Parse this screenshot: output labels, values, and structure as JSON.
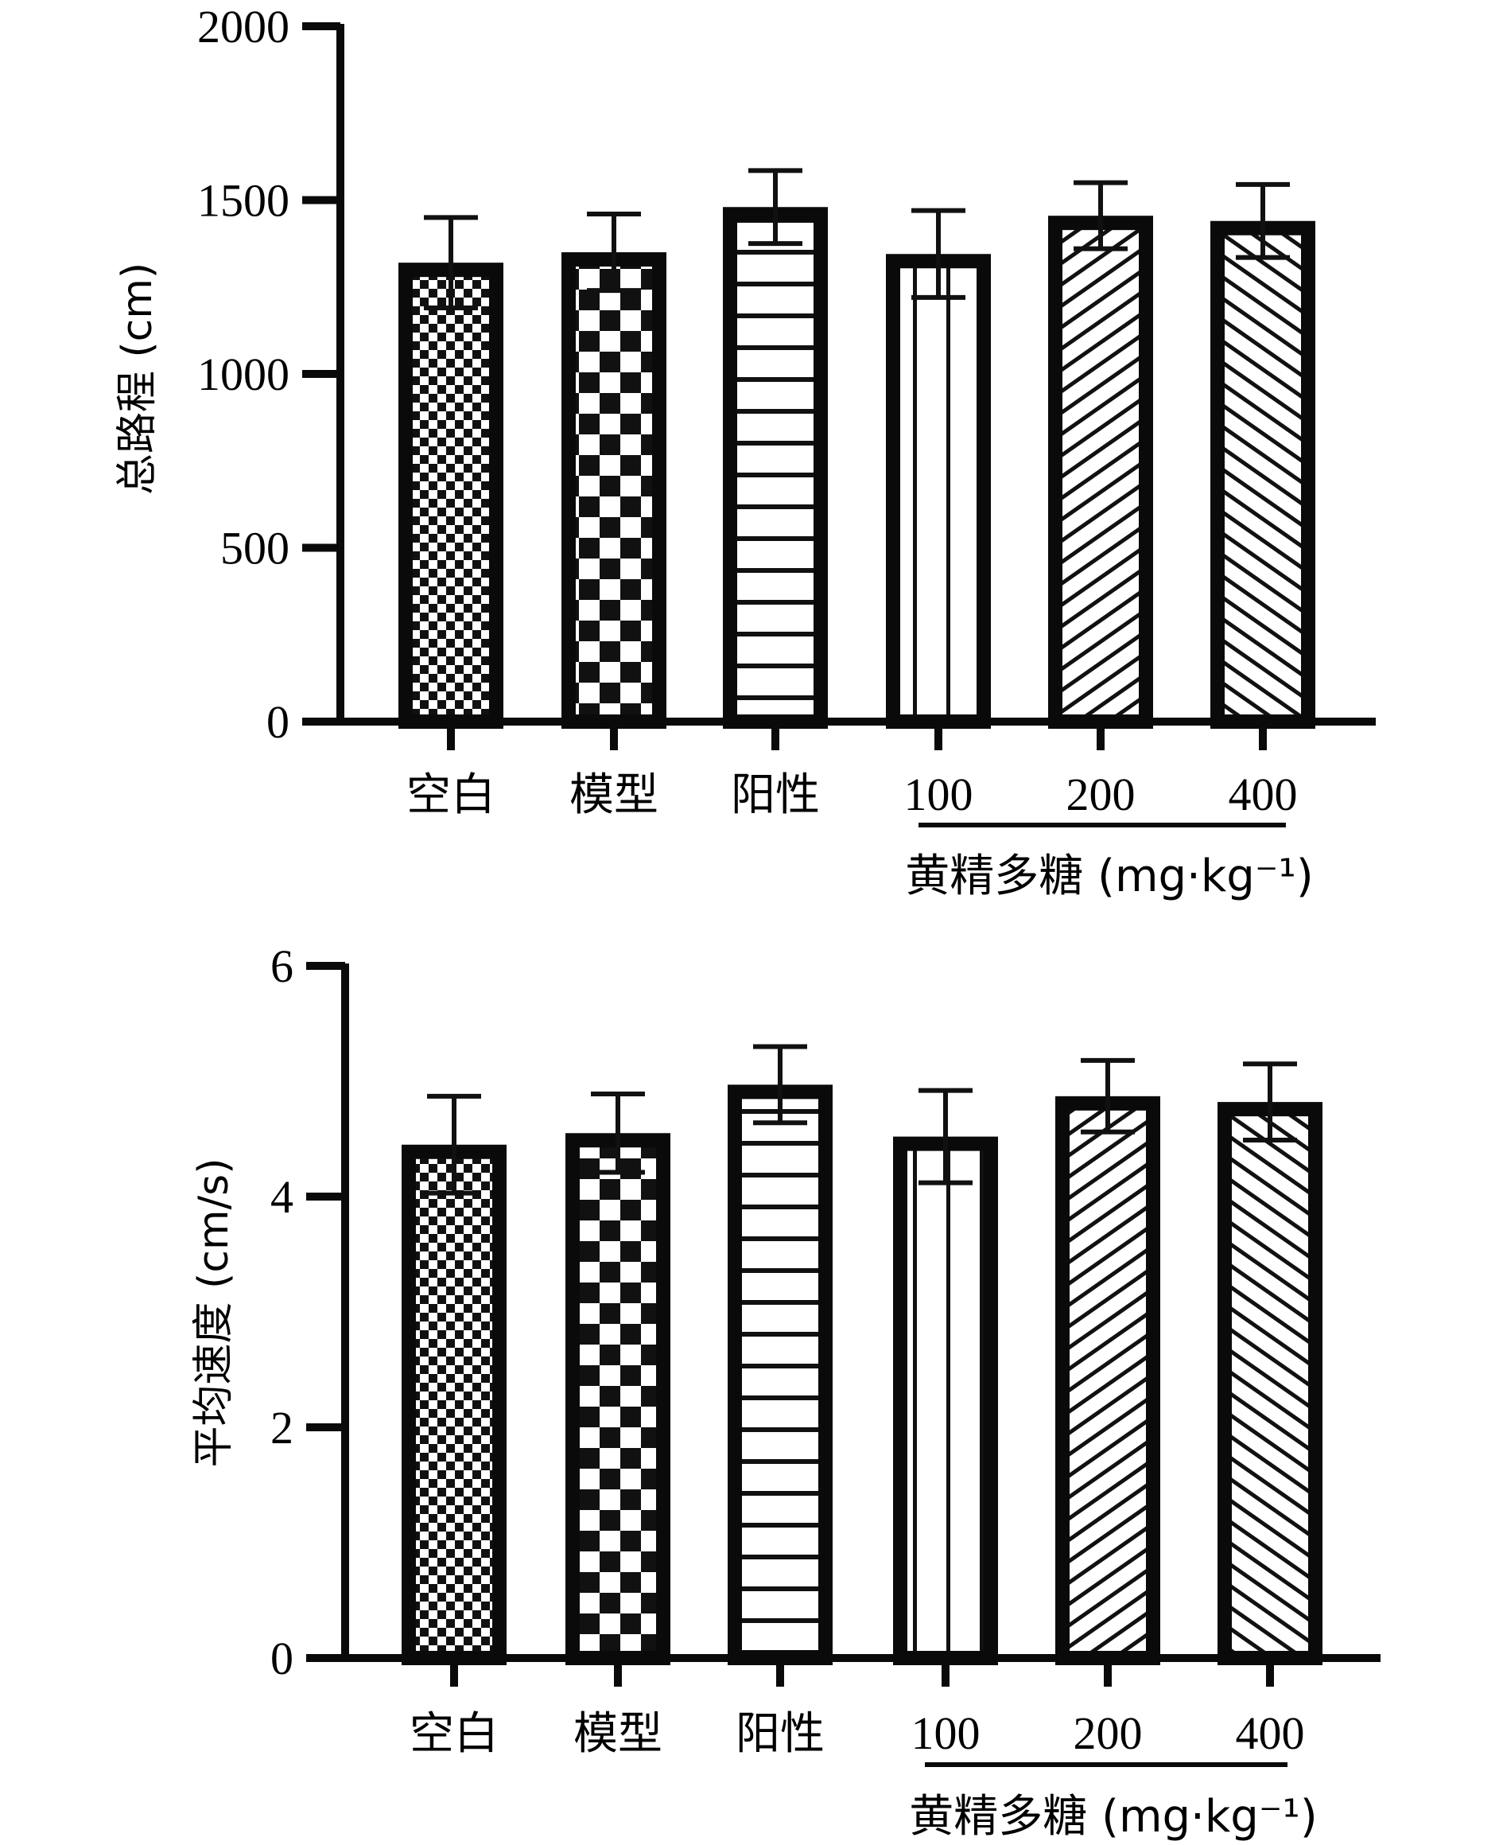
{
  "chart_data": [
    {
      "type": "bar",
      "title": "",
      "xlabel": "黄精多糖 (mg·kg⁻¹)",
      "ylabel": "总路程 (cm)",
      "categories": [
        "空白",
        "模型",
        "阳性",
        "100",
        "200",
        "400"
      ],
      "group_bracket": {
        "label": "黄精多糖 (mg·kg⁻¹)",
        "spans": [
          "100",
          "200",
          "400"
        ]
      },
      "values": [
        1320,
        1350,
        1480,
        1345,
        1455,
        1440
      ],
      "errors": [
        130,
        110,
        105,
        125,
        95,
        105
      ],
      "patterns": [
        "fine-checker",
        "coarse-checker",
        "horizontal-lines",
        "vertical-lines",
        "diagonal-up",
        "diagonal-down"
      ],
      "ylim": [
        0,
        2000
      ],
      "yticks": [
        0,
        500,
        1000,
        1500,
        2000
      ],
      "ytick_labels": [
        "0",
        "500",
        "1000",
        "1500",
        "2000"
      ],
      "grid": false,
      "colors": {
        "stroke": "#0a0a0a",
        "fill": "#ffffff"
      }
    },
    {
      "type": "bar",
      "title": "",
      "xlabel": "黄精多糖 (mg·kg⁻¹)",
      "ylabel": "平均速度 (cm/s)",
      "categories": [
        "空白",
        "模型",
        "阳性",
        "100",
        "200",
        "400"
      ],
      "group_bracket": {
        "label": "黄精多糖 (mg·kg⁻¹)",
        "spans": [
          "100",
          "200",
          "400"
        ]
      },
      "values": [
        4.45,
        4.55,
        4.97,
        4.52,
        4.87,
        4.82
      ],
      "errors": [
        0.42,
        0.34,
        0.33,
        0.4,
        0.31,
        0.33
      ],
      "patterns": [
        "fine-checker",
        "coarse-checker",
        "horizontal-lines",
        "vertical-lines",
        "diagonal-up",
        "diagonal-down"
      ],
      "ylim": [
        0,
        6
      ],
      "yticks": [
        0,
        2,
        4,
        6
      ],
      "ytick_labels": [
        "0",
        "2",
        "4",
        "6"
      ],
      "grid": false,
      "colors": {
        "stroke": "#0a0a0a",
        "fill": "#ffffff"
      }
    }
  ]
}
